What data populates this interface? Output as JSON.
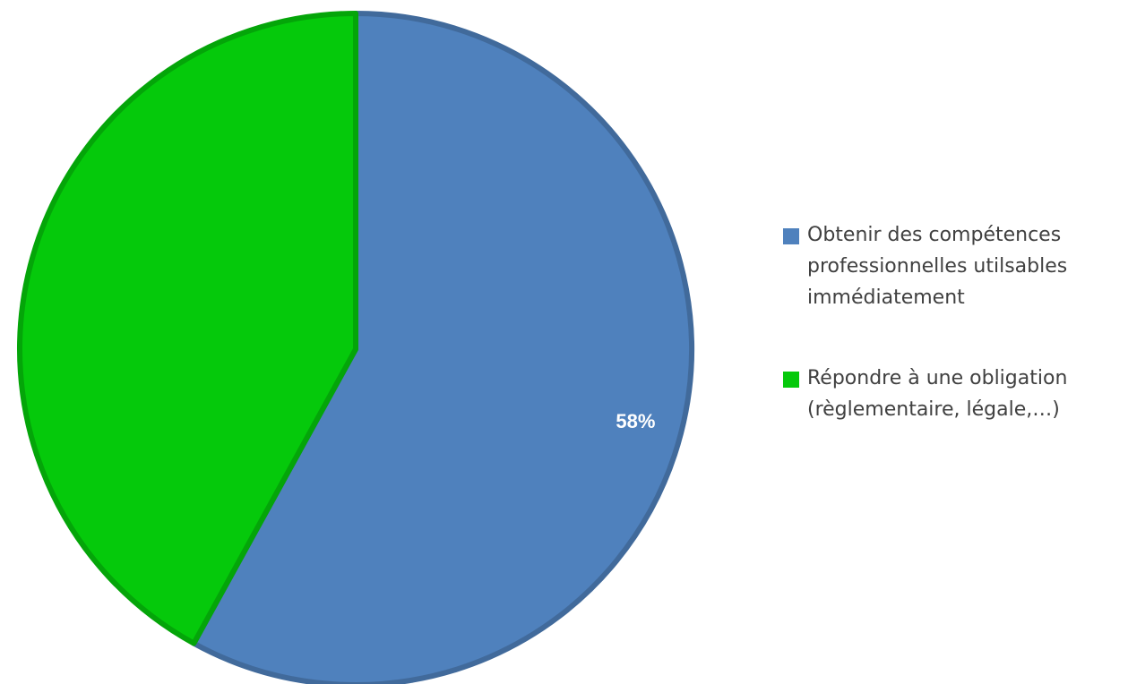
{
  "chart_data": {
    "type": "pie",
    "title": "",
    "categories": [
      "Obtenir des compétences professionnelles utilsables immédiatement",
      "Répondre à une obligation (règlementaire, légale,…)"
    ],
    "values": [
      58,
      42
    ],
    "unit": "%",
    "data_labels": [
      "58%",
      ""
    ],
    "colors": [
      "#4f81bd",
      "#05c90b"
    ],
    "legend": "right",
    "legend_entries": [
      {
        "lines": [
          "Obtenir des compétences",
          "professionnelles utilsables",
          "immédiatement"
        ],
        "color": "#4f81bd"
      },
      {
        "lines": [
          "Répondre à une obligation",
          "(règlementaire, légale,…)"
        ],
        "color": "#05c90b"
      }
    ]
  }
}
